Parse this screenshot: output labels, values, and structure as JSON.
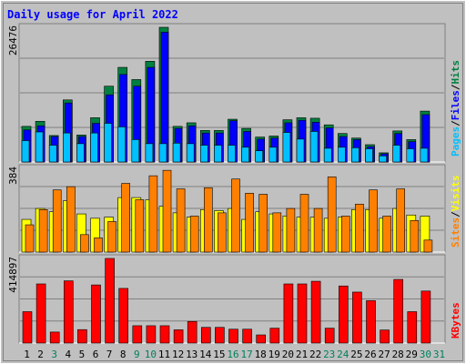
{
  "title": "Daily usage for April 2022",
  "colors": {
    "background": "#c0c0c0",
    "title": "#0000ff",
    "hits": "#008040",
    "files": "#0000ff",
    "pages": "#00c0ff",
    "visits": "#ffff00",
    "sites": "#ff8000",
    "kbytes": "#ff0000",
    "weekend_day": "#00805c",
    "weekday": "#000000"
  },
  "chart_data": [
    {
      "type": "bar",
      "name": "hits-files-pages",
      "max_label": "26476",
      "ylim": [
        0,
        26476
      ],
      "x": [
        "1",
        "2",
        "3",
        "4",
        "5",
        "6",
        "7",
        "8",
        "9",
        "10",
        "11",
        "12",
        "13",
        "14",
        "15",
        "16",
        "17",
        "18",
        "19",
        "20",
        "21",
        "22",
        "23",
        "24",
        "25",
        "26",
        "27",
        "28",
        "29",
        "30",
        "31"
      ],
      "series": [
        {
          "name": "Hits",
          "values": [
            7000,
            8000,
            5200,
            12200,
            5300,
            8700,
            14900,
            18600,
            16200,
            19800,
            26476,
            7000,
            7700,
            6200,
            6200,
            8400,
            6600,
            4900,
            5100,
            8300,
            8700,
            8600,
            7300,
            5600,
            4700,
            3400,
            1800,
            6100,
            4400,
            10000,
            0
          ]
        },
        {
          "name": "Files",
          "values": [
            6300,
            7100,
            5000,
            11600,
            5000,
            7600,
            13200,
            17200,
            14900,
            18600,
            25500,
            6600,
            7100,
            5700,
            5700,
            8100,
            6000,
            4500,
            4700,
            7700,
            8200,
            7800,
            6700,
            5000,
            4400,
            3000,
            1600,
            5600,
            4000,
            9300,
            0
          ]
        },
        {
          "name": "Pages",
          "values": [
            4200,
            5900,
            3300,
            5700,
            3600,
            5700,
            7600,
            6900,
            4400,
            3600,
            3600,
            3700,
            3600,
            3300,
            3300,
            3300,
            2900,
            2200,
            2900,
            5800,
            4500,
            6000,
            2700,
            2900,
            2800,
            2600,
            1200,
            3300,
            2600,
            2700,
            0
          ]
        }
      ]
    },
    {
      "type": "bar",
      "name": "visits-sites",
      "max_label": "384",
      "ylim": [
        0,
        384
      ],
      "x": [
        "1",
        "2",
        "3",
        "4",
        "5",
        "6",
        "7",
        "8",
        "9",
        "10",
        "11",
        "12",
        "13",
        "14",
        "15",
        "16",
        "17",
        "18",
        "19",
        "20",
        "21",
        "22",
        "23",
        "24",
        "25",
        "26",
        "27",
        "28",
        "29",
        "30",
        "31"
      ],
      "series": [
        {
          "name": "Visits",
          "values": [
            150,
            200,
            185,
            235,
            175,
            155,
            160,
            250,
            250,
            240,
            210,
            180,
            160,
            195,
            190,
            200,
            150,
            185,
            175,
            165,
            160,
            160,
            155,
            160,
            195,
            195,
            155,
            200,
            170,
            165,
            0
          ]
        },
        {
          "name": "Sites",
          "values": [
            125,
            195,
            285,
            300,
            80,
            65,
            140,
            315,
            240,
            350,
            375,
            290,
            165,
            295,
            180,
            335,
            270,
            265,
            180,
            200,
            265,
            200,
            345,
            165,
            220,
            285,
            165,
            290,
            145,
            55,
            0
          ]
        }
      ]
    },
    {
      "type": "bar",
      "name": "kbytes",
      "max_label": "414897",
      "ylim": [
        0,
        414897
      ],
      "x": [
        "1",
        "2",
        "3",
        "4",
        "5",
        "6",
        "7",
        "8",
        "9",
        "10",
        "11",
        "12",
        "13",
        "14",
        "15",
        "16",
        "17",
        "18",
        "19",
        "20",
        "21",
        "22",
        "23",
        "24",
        "25",
        "26",
        "27",
        "28",
        "29",
        "30",
        "31"
      ],
      "series": [
        {
          "name": "KBytes",
          "values": [
            154000,
            290000,
            54000,
            305000,
            66000,
            285000,
            414897,
            268000,
            85000,
            85000,
            85000,
            65000,
            106000,
            77000,
            77000,
            68000,
            68000,
            40000,
            73000,
            290000,
            290000,
            303000,
            73000,
            280000,
            250000,
            208000,
            64000,
            312000,
            154000,
            255000,
            0
          ]
        }
      ]
    }
  ],
  "legend_right_top": [
    "Pages",
    "/",
    "Files",
    "/",
    "Hits"
  ],
  "legend_right_mid": [
    "Sites",
    "/",
    "Visits"
  ],
  "legend_right_bot": [
    "KBytes"
  ],
  "weekend_days": [
    "3",
    "9",
    "10",
    "16",
    "17",
    "23",
    "24",
    "30",
    "31"
  ]
}
